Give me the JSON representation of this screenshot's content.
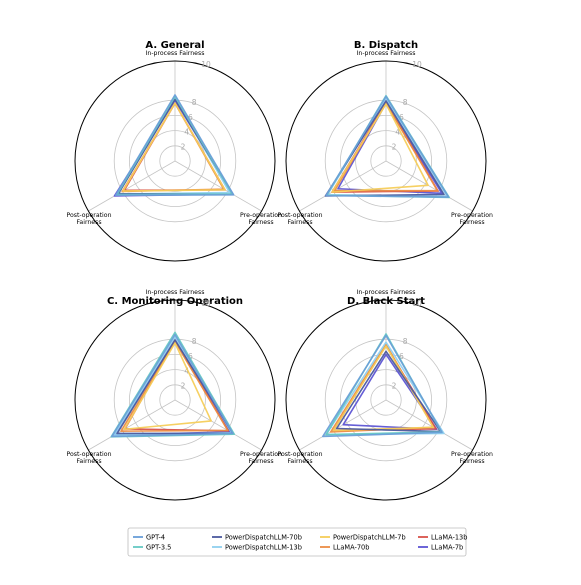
{
  "chart_data": [
    {
      "type": "radar",
      "title": "A. General",
      "axes": [
        "In-process Fairness",
        "Pre-operation\nFairness",
        "Post-operation\nFairness"
      ],
      "rlim": [
        0,
        10
      ],
      "ticks": [
        "2",
        "4",
        "6",
        "8",
        "10"
      ],
      "grid": true,
      "series": [
        {
          "name": "GPT-4",
          "values": [
            8.7,
            8.9,
            9.0
          ]
        },
        {
          "name": "GPT-3.5",
          "values": [
            8.5,
            8.7,
            8.8
          ]
        },
        {
          "name": "PowerDispatchLLM-70b",
          "values": [
            8.1,
            8.8,
            8.6
          ]
        },
        {
          "name": "PowerDispatchLLM-13b",
          "values": [
            8.3,
            8.3,
            8.7
          ]
        },
        {
          "name": "PowerDispatchLLM-7b",
          "values": [
            7.6,
            7.6,
            7.9
          ]
        },
        {
          "name": "LLaMA-70b",
          "values": [
            7.6,
            7.4,
            8.0
          ]
        },
        {
          "name": "LLaMA-13b",
          "values": [
            7.6,
            7.6,
            7.7
          ]
        },
        {
          "name": "LLaMA-7b",
          "values": [
            8.0,
            8.7,
            9.2
          ]
        }
      ]
    },
    {
      "type": "radar",
      "title": "B. Dispatch",
      "axes": [
        "In-process Fairness",
        "Pre-operation\nFairness",
        "Post-operation\nFairness"
      ],
      "rlim": [
        0,
        10
      ],
      "ticks": [
        "2",
        "4",
        "6",
        "8",
        "10"
      ],
      "grid": true,
      "series": [
        {
          "name": "GPT-4",
          "values": [
            8.5,
            9.5,
            9.1
          ]
        },
        {
          "name": "GPT-3.5",
          "values": [
            8.6,
            9.6,
            9.0
          ]
        },
        {
          "name": "PowerDispatchLLM-70b",
          "values": [
            7.9,
            8.8,
            9.2
          ]
        },
        {
          "name": "PowerDispatchLLM-13b",
          "values": [
            8.2,
            9.3,
            8.9
          ]
        },
        {
          "name": "PowerDispatchLLM-7b",
          "values": [
            7.5,
            6.4,
            8.2
          ]
        },
        {
          "name": "LLaMA-70b",
          "values": [
            7.6,
            7.8,
            7.8
          ]
        },
        {
          "name": "LLaMA-13b",
          "values": [
            7.7,
            7.9,
            8.2
          ]
        },
        {
          "name": "LLaMA-7b",
          "values": [
            7.6,
            8.5,
            7.3
          ]
        }
      ]
    },
    {
      "type": "radar",
      "title": "C. Monitoring Operation",
      "axes": [
        "In-process Fairness",
        "Pre-operation\nFairness",
        "Post-operation\nFairness"
      ],
      "rlim": [
        0,
        10
      ],
      "ticks": [
        "2",
        "4",
        "6",
        "8",
        "10"
      ],
      "grid": true,
      "series": [
        {
          "name": "GPT-4",
          "values": [
            8.6,
            8.8,
            9.6
          ]
        },
        {
          "name": "GPT-3.5",
          "values": [
            8.9,
            9.0,
            9.7
          ]
        },
        {
          "name": "PowerDispatchLLM-70b",
          "values": [
            7.9,
            8.8,
            8.8
          ]
        },
        {
          "name": "PowerDispatchLLM-13b",
          "values": [
            8.3,
            8.6,
            9.2
          ]
        },
        {
          "name": "PowerDispatchLLM-7b",
          "values": [
            7.5,
            5.5,
            7.7
          ]
        },
        {
          "name": "LLaMA-70b",
          "values": [
            7.7,
            8.0,
            8.2
          ]
        },
        {
          "name": "LLaMA-13b",
          "values": [
            7.8,
            8.1,
            7.6
          ]
        },
        {
          "name": "LLaMA-7b",
          "values": [
            7.8,
            8.4,
            9.2
          ]
        }
      ]
    },
    {
      "type": "radar",
      "title": "D. Black Start",
      "axes": [
        "In-process Fairness",
        "Pre-operation\nFairness",
        "Post-operation\nFairness"
      ],
      "rlim": [
        0,
        10
      ],
      "ticks": [
        "2",
        "4",
        "6",
        "8",
        "10"
      ],
      "grid": true,
      "series": [
        {
          "name": "GPT-4",
          "values": [
            8.5,
            8.5,
            9.6
          ]
        },
        {
          "name": "GPT-3.5",
          "values": [
            8.7,
            8.4,
            9.1
          ]
        },
        {
          "name": "PowerDispatchLLM-70b",
          "values": [
            6.4,
            8.3,
            7.5
          ]
        },
        {
          "name": "PowerDispatchLLM-13b",
          "values": [
            7.6,
            8.8,
            9.1
          ]
        },
        {
          "name": "PowerDispatchLLM-7b",
          "values": [
            7.1,
            7.2,
            8.0
          ]
        },
        {
          "name": "LLaMA-70b",
          "values": [
            7.3,
            7.2,
            8.4
          ]
        },
        {
          "name": "LLaMA-13b",
          "values": [
            7.2,
            7.6,
            8.0
          ]
        },
        {
          "name": "LLaMA-7b",
          "values": [
            6.0,
            7.7,
            6.5
          ]
        }
      ]
    }
  ],
  "legend": {
    "placement": "bottom-center",
    "items": [
      {
        "name": "GPT-4",
        "color": "#6a9fd8"
      },
      {
        "name": "PowerDispatchLLM-70b",
        "color": "#4b5a9e"
      },
      {
        "name": "PowerDispatchLLM-7b",
        "color": "#f5cd5a"
      },
      {
        "name": "LLaMA-13b",
        "color": "#d9534a"
      },
      {
        "name": "GPT-3.5",
        "color": "#66c9c3"
      },
      {
        "name": "PowerDispatchLLM-13b",
        "color": "#8fd0ef"
      },
      {
        "name": "LLaMA-70b",
        "color": "#eb8d45"
      },
      {
        "name": "LLaMA-7b",
        "color": "#5d55d4"
      }
    ]
  }
}
